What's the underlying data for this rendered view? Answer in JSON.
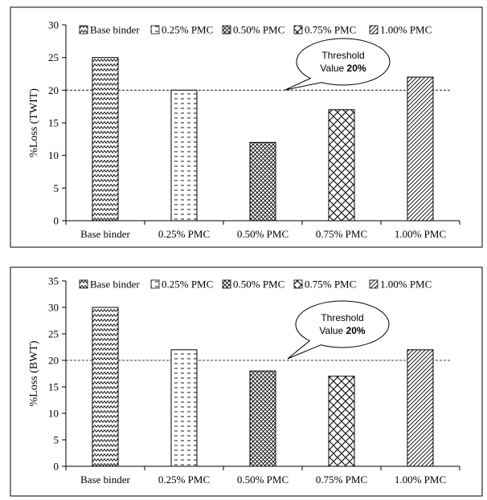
{
  "chart_data": [
    {
      "type": "bar",
      "ylabel": "%Loss (TWIT)",
      "xlabel": "",
      "ylim": [
        0,
        30
      ],
      "yticks": [
        0,
        5,
        10,
        15,
        20,
        25,
        30
      ],
      "categories": [
        "Base binder",
        "0.25% PMC",
        "0.50% PMC",
        "0.75% PMC",
        "1.00% PMC"
      ],
      "values": [
        25,
        20,
        12,
        17,
        22
      ],
      "legend": [
        "Base binder",
        "0.25% PMC",
        "0.50% PMC",
        "0.75% PMC",
        "1.00% PMC"
      ],
      "legend_position": "top",
      "grid": false,
      "threshold": 20,
      "callout": {
        "line1": "Threshold",
        "line2_prefix": "Value ",
        "line2_bold": "20%"
      },
      "patterns": [
        "zigzag",
        "dash",
        "crosshatch",
        "diamond",
        "diagonal"
      ]
    },
    {
      "type": "bar",
      "ylabel": "%Loss (BWT)",
      "xlabel": "",
      "ylim": [
        0,
        35
      ],
      "yticks": [
        0,
        5,
        10,
        15,
        20,
        25,
        30,
        35
      ],
      "categories": [
        "Base binder",
        "0.25% PMC",
        "0.50% PMC",
        "0.75% PMC",
        "1.00% PMC"
      ],
      "values": [
        30,
        22,
        18,
        17,
        22
      ],
      "legend": [
        "Base binder",
        "0.25% PMC",
        "0.50% PMC",
        "0.75% PMC",
        "1.00% PMC"
      ],
      "legend_position": "top",
      "grid": false,
      "threshold": 20,
      "callout": {
        "line1": "Threshold",
        "line2_prefix": "Value ",
        "line2_bold": "20%"
      },
      "patterns": [
        "zigzag",
        "dash",
        "crosshatch",
        "diamond",
        "diagonal"
      ]
    }
  ]
}
